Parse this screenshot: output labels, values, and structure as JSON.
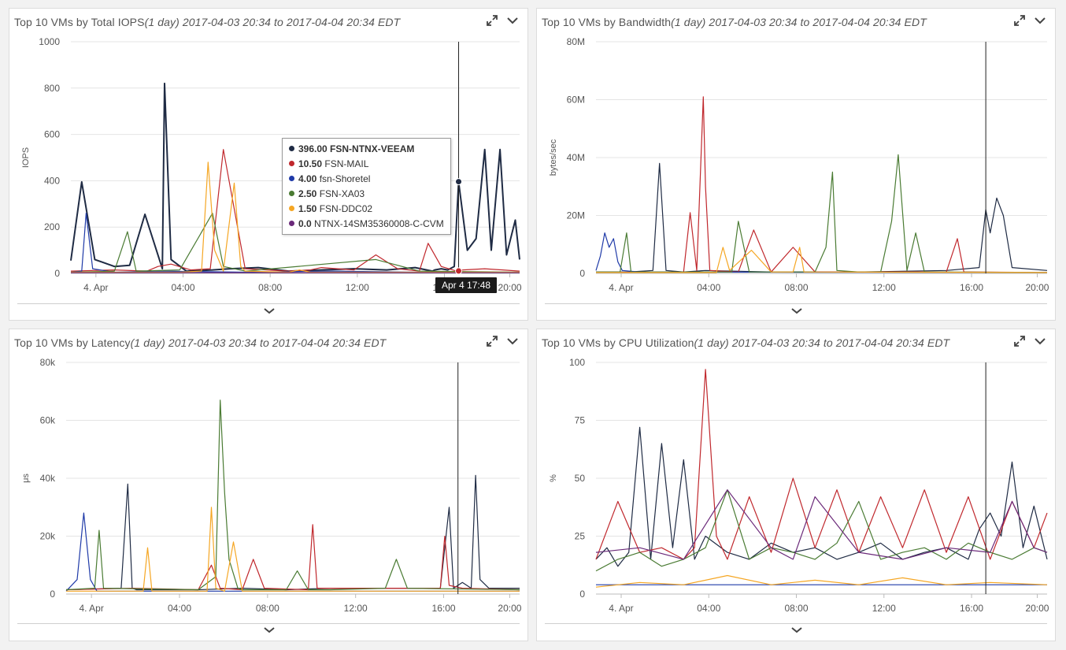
{
  "panels": [
    {
      "title": "Top 10 VMs by Total IOPS",
      "range": "(1 day) 2017-04-03 20:34 to 2017-04-04 20:34 EDT",
      "chart_data": {
        "type": "line",
        "ylabel": "IOPS",
        "ylim": [
          0,
          1000
        ],
        "yticks": [
          "0",
          "200",
          "400",
          "600",
          "800",
          "1000"
        ],
        "xticks": [
          "4. Apr",
          "04:00",
          "08:00",
          "12:00",
          "16:00",
          "20:00"
        ],
        "series": [
          {
            "color": "#1f2b44",
            "x": [
              0.0,
              0.5,
              1.1,
              2.0,
              2.7,
              3.4,
              4.2,
              4.3,
              4.6,
              5.3,
              6.5,
              7.3,
              8.6,
              10.0,
              11.5,
              13.0,
              14.5,
              15.8,
              16.6,
              16.7,
              17.0,
              17.3,
              17.6,
              17.8,
              18.2,
              18.6,
              19.0,
              19.3,
              19.7,
              20.0,
              20.4,
              20.6
            ],
            "y": [
              55,
              395,
              60,
              30,
              35,
              255,
              20,
              820,
              60,
              10,
              15,
              20,
              25,
              10,
              15,
              20,
              15,
              25,
              10,
              15,
              20,
              15,
              30,
              396,
              100,
              150,
              535,
              100,
              535,
              80,
              230,
              60
            ]
          },
          {
            "color": "#c0282d",
            "x": [
              0.0,
              2.0,
              3.5,
              4.0,
              4.6,
              5.5,
              6.4,
              7.0,
              8.0,
              10.0,
              11.0,
              11.5,
              13.0,
              14.0,
              15.0,
              16.0,
              16.4,
              17.0,
              17.7,
              18.0,
              19.0,
              20.6
            ],
            "y": [
              10,
              15,
              10,
              30,
              40,
              15,
              20,
              535,
              20,
              10,
              15,
              25,
              15,
              80,
              20,
              10,
              130,
              30,
              10,
              15,
              20,
              10
            ]
          },
          {
            "color": "#1f3aa8",
            "x": [
              0.0,
              0.5,
              0.7,
              1.0,
              2.0,
              4.0,
              8.0,
              12.0,
              16.0,
              20.6
            ],
            "y": [
              5,
              10,
              260,
              20,
              5,
              10,
              5,
              10,
              5,
              5
            ]
          },
          {
            "color": "#4a7b33",
            "x": [
              0.0,
              2.0,
              2.6,
              3.0,
              5.0,
              6.5,
              7.0,
              8.0,
              14.0,
              16.0,
              20.6
            ],
            "y": [
              5,
              10,
              180,
              10,
              15,
              260,
              30,
              10,
              60,
              10,
              5
            ]
          },
          {
            "color": "#f5a623",
            "x": [
              0.0,
              5.0,
              6.0,
              6.3,
              6.6,
              7.0,
              7.5,
              7.8,
              8.0,
              10.0,
              10.5,
              11.0,
              16.0,
              20.6
            ],
            "y": [
              5,
              5,
              10,
              480,
              100,
              10,
              390,
              30,
              10,
              5,
              15,
              5,
              5,
              5
            ]
          },
          {
            "color": "#6b2a7a",
            "x": [
              0.0,
              20.6
            ],
            "y": [
              3,
              3
            ]
          }
        ],
        "crosshair_x": 17.8
      },
      "tooltip": {
        "rows": [
          {
            "value": "396.00",
            "name": "FSN-NTNX-VEEAM",
            "color": "#1f2b44"
          },
          {
            "value": "10.50",
            "name": "FSN-MAIL",
            "color": "#c0282d"
          },
          {
            "value": "4.00",
            "name": "fsn-Shoretel",
            "color": "#1f3aa8"
          },
          {
            "value": "2.50",
            "name": "FSN-XA03",
            "color": "#4a7b33"
          },
          {
            "value": "1.50",
            "name": "FSN-DDC02",
            "color": "#f5a623"
          },
          {
            "value": "0.0",
            "name": "NTNX-14SM35360008-C-CVM",
            "color": "#6b2a7a"
          }
        ]
      },
      "crosshair_label": "Apr 4 17:48"
    },
    {
      "title": "Top 10 VMs by Bandwidth",
      "range": "(1 day) 2017-04-03 20:34 to 2017-04-04 20:34 EDT",
      "chart_data": {
        "type": "line",
        "ylabel": "bytes/sec",
        "ylim": [
          0,
          80
        ],
        "yticks": [
          "0",
          "20M",
          "40M",
          "60M",
          "80M"
        ],
        "xticks": [
          "4. Apr",
          "04:00",
          "08:00",
          "12:00",
          "16:00",
          "20:00"
        ],
        "series": [
          {
            "color": "#1f2b44",
            "x": [
              0.0,
              1.5,
              2.6,
              2.9,
              3.2,
              4.0,
              5.0,
              8.0,
              12.0,
              16.0,
              17.5,
              17.8,
              18.0,
              18.3,
              18.6,
              19.0,
              20.6
            ],
            "y": [
              0.5,
              0.5,
              1,
              38,
              1,
              0.5,
              1,
              0.5,
              0.5,
              1,
              2,
              22,
              14,
              26,
              20,
              2,
              1
            ]
          },
          {
            "color": "#c0282d",
            "x": [
              0.0,
              4.0,
              4.3,
              4.6,
              4.9,
              5.0,
              5.2,
              6.5,
              7.2,
              8.0,
              9.0,
              10.0,
              12.0,
              14.0,
              16.0,
              16.5,
              16.8,
              17.0,
              20.6
            ],
            "y": [
              0.3,
              0.5,
              21,
              1,
              61,
              30,
              1,
              0.5,
              15,
              0.5,
              9,
              0.5,
              0.5,
              0.5,
              0.5,
              12,
              0.5,
              0.5,
              0.3
            ]
          },
          {
            "color": "#1f3aa8",
            "x": [
              0.0,
              0.2,
              0.4,
              0.6,
              0.8,
              1.0,
              1.2,
              2.0,
              20.6
            ],
            "y": [
              1,
              6,
              14,
              9,
              12,
              4,
              1,
              0.5,
              0.3
            ]
          },
          {
            "color": "#4a7b33",
            "x": [
              0.0,
              1.1,
              1.4,
              1.6,
              4.0,
              6.2,
              6.5,
              7.0,
              10.0,
              10.5,
              10.8,
              11.0,
              12.0,
              13.0,
              13.5,
              13.8,
              14.2,
              14.6,
              15.0,
              16.0,
              20.6
            ],
            "y": [
              0.5,
              0.5,
              14,
              0.5,
              0.5,
              0.5,
              18,
              0.5,
              0.5,
              9,
              35,
              1,
              0.5,
              0.5,
              18,
              41,
              1,
              14,
              0.5,
              0.5,
              0.3
            ]
          },
          {
            "color": "#f5a623",
            "x": [
              0.0,
              5.5,
              5.8,
              6.1,
              7.1,
              8.0,
              9.0,
              9.3,
              9.5,
              20.6
            ],
            "y": [
              0.3,
              0.3,
              9,
              1,
              8,
              0.5,
              0.5,
              9,
              0.5,
              0.3
            ]
          }
        ],
        "crosshair_x": 17.8
      }
    },
    {
      "title": "Top 10 VMs by Latency",
      "range": "(1 day) 2017-04-03 20:34 to 2017-04-04 20:34 EDT",
      "chart_data": {
        "type": "line",
        "ylabel": "μs",
        "ylim": [
          0,
          80
        ],
        "yticks": [
          "0",
          "20k",
          "40k",
          "60k",
          "80k"
        ],
        "xticks": [
          "4. Apr",
          "04:00",
          "08:00",
          "12:00",
          "16:00",
          "20:00"
        ],
        "series": [
          {
            "color": "#1f2b44",
            "x": [
              0.0,
              2.5,
              2.8,
              3.0,
              3.2,
              6.0,
              8.0,
              10.0,
              12.0,
              16.0,
              17.0,
              17.4,
              17.6,
              18.0,
              18.4,
              18.6,
              18.8,
              19.2,
              20.6
            ],
            "y": [
              1.5,
              2,
              38,
              2,
              1.5,
              1.5,
              2,
              1.5,
              2,
              2,
              2,
              30,
              2,
              4,
              2,
              41,
              5,
              2,
              2
            ]
          },
          {
            "color": "#c0282d",
            "x": [
              0.0,
              3.0,
              6.0,
              6.6,
              7.0,
              8.0,
              8.5,
              9.0,
              11.0,
              11.2,
              11.4,
              14.0,
              17.0,
              17.2,
              17.4,
              18.0,
              20.6
            ],
            "y": [
              1.5,
              2,
              1.5,
              10,
              2,
              1.5,
              12,
              2,
              1.5,
              24,
              2,
              2,
              2,
              20,
              3,
              2,
              1.5
            ]
          },
          {
            "color": "#1f3aa8",
            "x": [
              0.0,
              0.5,
              0.8,
              1.1,
              1.4,
              2.0,
              8.0,
              16.0,
              20.6
            ],
            "y": [
              1,
              5,
              28,
              5,
              1,
              1,
              1,
              1,
              1
            ]
          },
          {
            "color": "#4a7b33",
            "x": [
              0.0,
              1.3,
              1.5,
              1.7,
              6.0,
              6.8,
              7.0,
              7.2,
              7.4,
              7.8,
              8.0,
              10.0,
              10.5,
              11.0,
              12.0,
              14.5,
              15.0,
              15.5,
              20.6
            ],
            "y": [
              1.5,
              2,
              22,
              2,
              1.5,
              6,
              67,
              35,
              12,
              2,
              1.5,
              1.5,
              8,
              1.5,
              1.5,
              2,
              12,
              2,
              1.5
            ]
          },
          {
            "color": "#f5a623",
            "x": [
              0.0,
              3.5,
              3.7,
              3.9,
              6.4,
              6.6,
              6.8,
              7.2,
              7.6,
              8.0,
              9.0,
              10.0,
              20.6
            ],
            "y": [
              1,
              1,
              16,
              1,
              1,
              30,
              2,
              1,
              18,
              1,
              1,
              1,
              1
            ]
          }
        ],
        "crosshair_x": 17.8
      }
    },
    {
      "title": "Top 10 VMs by CPU Utilization",
      "range": "(1 day) 2017-04-03 20:34 to 2017-04-04 20:34 EDT",
      "chart_data": {
        "type": "line",
        "ylabel": "%",
        "ylim": [
          0,
          100
        ],
        "yticks": [
          "0",
          "25",
          "50",
          "75",
          "100"
        ],
        "xticks": [
          "4. Apr",
          "04:00",
          "08:00",
          "12:00",
          "16:00",
          "20:00"
        ],
        "series": [
          {
            "color": "#1f2b44",
            "x": [
              0.0,
              0.5,
              1.0,
              1.5,
              2.0,
              2.5,
              3.0,
              3.5,
              4.0,
              4.5,
              5.0,
              6.0,
              7.0,
              8.0,
              9.0,
              10.0,
              11.0,
              12.0,
              13.0,
              14.0,
              15.0,
              16.0,
              17.0,
              17.5,
              18.0,
              18.5,
              19.0,
              19.5,
              20.0,
              20.6
            ],
            "y": [
              15,
              20,
              12,
              18,
              72,
              15,
              65,
              20,
              58,
              15,
              25,
              18,
              15,
              22,
              18,
              20,
              15,
              18,
              22,
              15,
              18,
              20,
              15,
              28,
              35,
              25,
              57,
              20,
              38,
              15
            ]
          },
          {
            "color": "#c0282d",
            "x": [
              0.0,
              1.0,
              2.0,
              3.0,
              4.0,
              4.5,
              5.0,
              5.5,
              6.0,
              7.0,
              8.0,
              9.0,
              10.0,
              11.0,
              12.0,
              13.0,
              14.0,
              15.0,
              16.0,
              17.0,
              18.0,
              19.0,
              20.0,
              20.6
            ],
            "y": [
              15,
              40,
              18,
              20,
              15,
              20,
              97,
              25,
              15,
              42,
              18,
              50,
              20,
              45,
              18,
              42,
              20,
              45,
              18,
              42,
              15,
              40,
              20,
              35
            ]
          },
          {
            "color": "#1f3aa8",
            "x": [
              0.0,
              20.6
            ],
            "y": [
              4,
              4
            ]
          },
          {
            "color": "#4a7b33",
            "x": [
              0.0,
              1.0,
              2.0,
              3.0,
              4.0,
              5.0,
              6.0,
              7.0,
              8.0,
              9.0,
              10.0,
              11.0,
              12.0,
              13.0,
              14.0,
              15.0,
              16.0,
              17.0,
              18.0,
              19.0,
              20.0,
              20.6
            ],
            "y": [
              10,
              15,
              18,
              12,
              15,
              20,
              45,
              15,
              20,
              18,
              15,
              22,
              40,
              15,
              18,
              20,
              15,
              22,
              18,
              15,
              20,
              18
            ]
          },
          {
            "color": "#f5a623",
            "x": [
              0.0,
              2.0,
              4.0,
              6.0,
              8.0,
              10.0,
              12.0,
              14.0,
              16.0,
              18.0,
              20.6
            ],
            "y": [
              3,
              5,
              4,
              8,
              4,
              6,
              4,
              7,
              4,
              5,
              4
            ]
          },
          {
            "color": "#6b2a7a",
            "x": [
              0.0,
              2.0,
              4.0,
              6.0,
              8.0,
              9.0,
              10.0,
              12.0,
              14.0,
              16.0,
              18.0,
              19.0,
              20.0,
              20.6
            ],
            "y": [
              18,
              20,
              15,
              45,
              20,
              15,
              42,
              18,
              15,
              20,
              18,
              40,
              20,
              18
            ]
          }
        ],
        "crosshair_x": 17.8
      }
    }
  ]
}
